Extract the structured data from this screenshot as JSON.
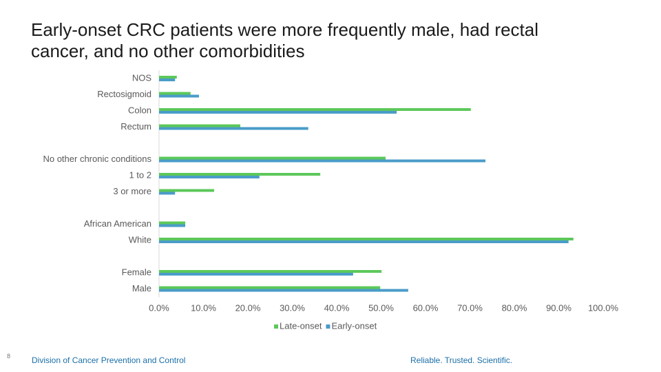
{
  "chart_data": {
    "type": "hbar",
    "title": "Early-onset CRC patients were more frequently male, had rectal cancer, and no other comorbidities",
    "categories": [
      "NOS",
      "Rectosigmoid",
      "Colon",
      "Rectum",
      null,
      "No other chronic conditions",
      "1 to 2",
      "3 or more",
      null,
      "African American",
      "White",
      null,
      "Female",
      "Male"
    ],
    "series": [
      {
        "name": "Late-onset",
        "color": "#5cc85a",
        "values": [
          4.0,
          7.1,
          70.2,
          18.3,
          null,
          51.0,
          36.3,
          12.4,
          null,
          5.9,
          93.3,
          null,
          50.1,
          49.8
        ]
      },
      {
        "name": "Early-onset",
        "color": "#4a9cc9",
        "values": [
          3.6,
          9.0,
          53.5,
          33.6,
          null,
          73.5,
          22.6,
          3.6,
          null,
          5.9,
          92.2,
          null,
          43.7,
          56.1
        ]
      }
    ],
    "xlim": [
      0,
      100
    ],
    "xticks": [
      {
        "value": 0,
        "label": "0.0%"
      },
      {
        "value": 10,
        "label": "10.0%"
      },
      {
        "value": 20,
        "label": "20.0%"
      },
      {
        "value": 30,
        "label": "30.0%"
      },
      {
        "value": 40,
        "label": "40.0%"
      },
      {
        "value": 50,
        "label": "50.0%"
      },
      {
        "value": 60,
        "label": "60.0%"
      },
      {
        "value": 70,
        "label": "70.0%"
      },
      {
        "value": 80,
        "label": "80.0%"
      },
      {
        "value": 90,
        "label": "90.0%"
      },
      {
        "value": 100,
        "label": "100.0%"
      }
    ],
    "grid": false,
    "legend": "bottom"
  },
  "footer": {
    "page_number": "8",
    "left": "Division of Cancer Prevention and Control",
    "right": "Reliable. Trusted. Scientific."
  }
}
